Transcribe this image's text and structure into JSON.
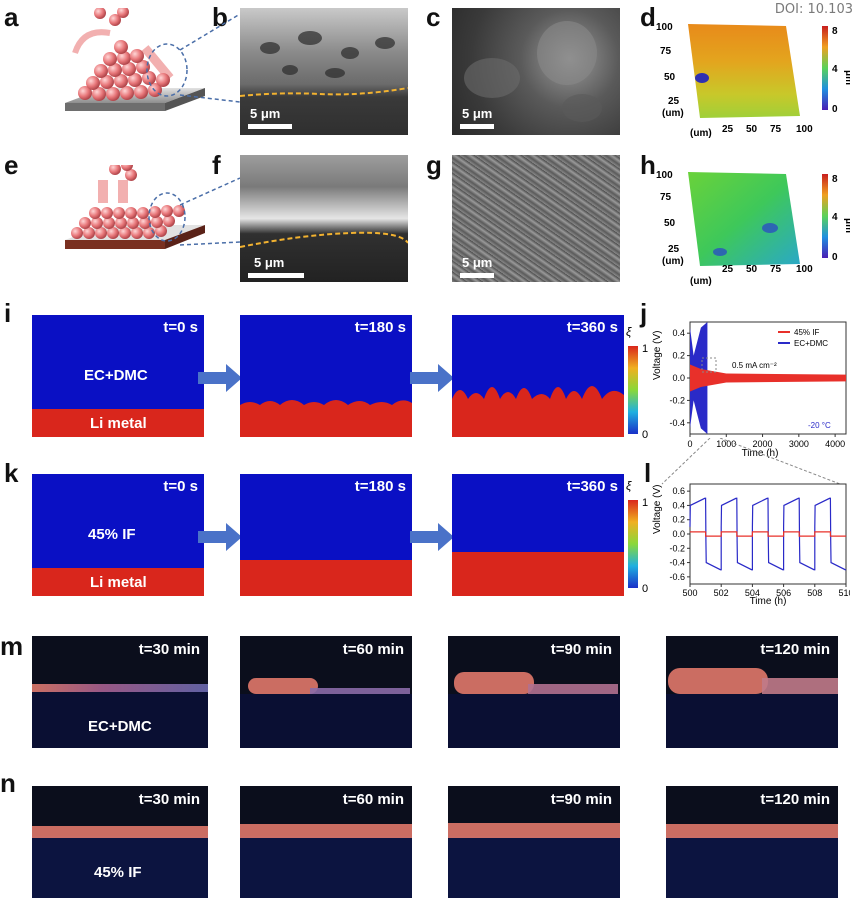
{
  "doi": "DOI: 10.103",
  "panels": {
    "a": "a",
    "b": "b",
    "c": "c",
    "d": "d",
    "e": "e",
    "f": "f",
    "g": "g",
    "h": "h",
    "i": "i",
    "j": "j",
    "k": "k",
    "l": "l",
    "m": "m",
    "n": "n"
  },
  "sem": {
    "scale": "5 μm"
  },
  "afm": {
    "x_ticks": [
      "25",
      "50",
      "75",
      "100"
    ],
    "y_ticks": [
      "25",
      "50",
      "75",
      "100"
    ],
    "unit_label": "(um)",
    "cbar_ticks": [
      "8",
      "4",
      "0"
    ],
    "cbar_unit": "μm"
  },
  "simulation": {
    "times": [
      "t=0 s",
      "t=180 s",
      "t=360 s"
    ],
    "label_ec": "EC+DMC",
    "label_if": "45% IF",
    "label_li": "Li metal",
    "cbar_symbol": "ξ",
    "cbar_ticks": [
      "1",
      "0"
    ]
  },
  "videos": {
    "times": [
      "t=30 min",
      "t=60 min",
      "t=90 min",
      "t=120 min"
    ],
    "label_ec": "EC+DMC",
    "label_if": "45% IF"
  },
  "chart_data": [
    {
      "type": "line",
      "panel": "j",
      "xlabel": "Time (h)",
      "ylabel": "Voltage (V)",
      "xlim": [
        0,
        4300
      ],
      "ylim": [
        -0.5,
        0.5
      ],
      "x_ticks": [
        "0",
        "1000",
        "2000",
        "3000",
        "4000"
      ],
      "y_ticks": [
        "0.4",
        "0.2",
        "0.0",
        "-0.2",
        "-0.4"
      ],
      "annotation_current": "0.5 mA cm⁻²",
      "annotation_temp": "-20 °C",
      "series": [
        {
          "name": "45% IF",
          "color": "#e8302a",
          "envelope": [
            [
              0,
              0.12
            ],
            [
              300,
              0.08
            ],
            [
              1000,
              0.04
            ],
            [
              4300,
              0.03
            ]
          ]
        },
        {
          "name": "EC+DMC",
          "color": "#2a2ac8",
          "envelope": [
            [
              0,
              0.45
            ],
            [
              100,
              0.2
            ],
            [
              300,
              0.45
            ],
            [
              480,
              0.5
            ]
          ]
        }
      ]
    },
    {
      "type": "line",
      "panel": "l",
      "xlabel": "Time (h)",
      "ylabel": "Voltage (V)",
      "xlim": [
        500,
        510
      ],
      "ylim": [
        -0.7,
        0.7
      ],
      "x_ticks": [
        "500",
        "502",
        "504",
        "506",
        "508",
        "510"
      ],
      "y_ticks": [
        "0.6",
        "0.4",
        "0.2",
        "0.0",
        "-0.2",
        "-0.4",
        "-0.6"
      ],
      "series": [
        {
          "name": "EC+DMC",
          "color": "#2a2ac8",
          "amplitude": 0.5,
          "period_h": 2
        },
        {
          "name": "45% IF",
          "color": "#e8302a",
          "amplitude": 0.03,
          "period_h": 2
        }
      ]
    }
  ]
}
